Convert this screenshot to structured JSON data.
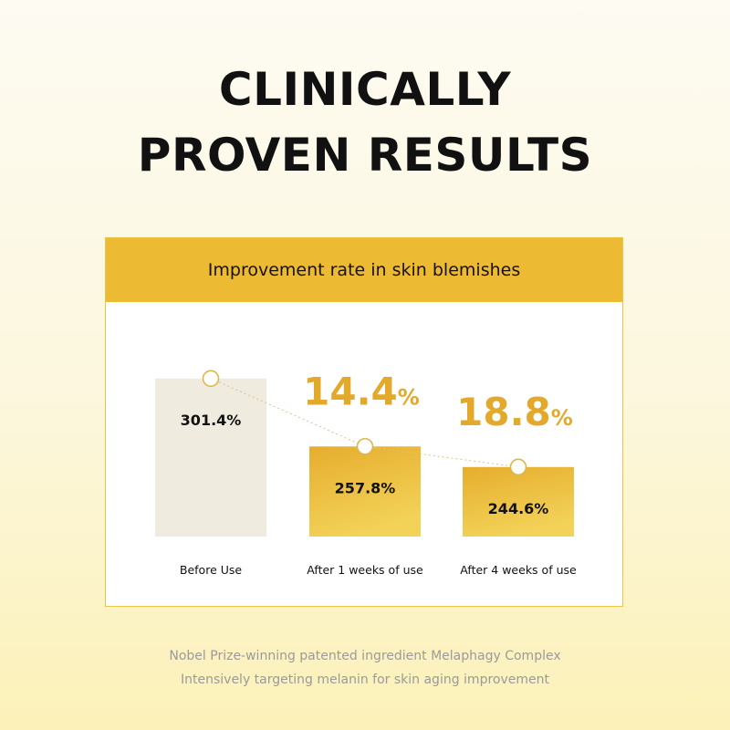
{
  "headline": {
    "line1": "CLINICALLY",
    "line2": "PROVEN RESULTS"
  },
  "chart_data": {
    "type": "bar",
    "title": "Improvement rate in skin blemishes",
    "categories": [
      "Before Use",
      "After 1 weeks of use",
      "After 4 weeks of use"
    ],
    "values": [
      301.4,
      257.8,
      244.6
    ],
    "value_labels": [
      "301.4%",
      "257.8%",
      "244.6%"
    ],
    "improvements": [
      {
        "between": [
          0,
          1
        ],
        "value": "14.4",
        "unit": "%"
      },
      {
        "between": [
          1,
          2
        ],
        "value": "18.8",
        "unit": "%"
      }
    ],
    "ylim": [
      200,
      320
    ],
    "colors": {
      "bar_before": "#efecdf",
      "bar_after_top": "#e6ad2e",
      "bar_after_bottom": "#f2d257",
      "improvement_text": "#e3a92a",
      "marker_stroke": "#dcb84c",
      "trend_line": "#e0c470"
    }
  },
  "footer": {
    "line1": "Nobel Prize-winning patented ingredient Melaphagy Complex",
    "line2": "Intensively targeting melanin for skin aging improvement"
  }
}
